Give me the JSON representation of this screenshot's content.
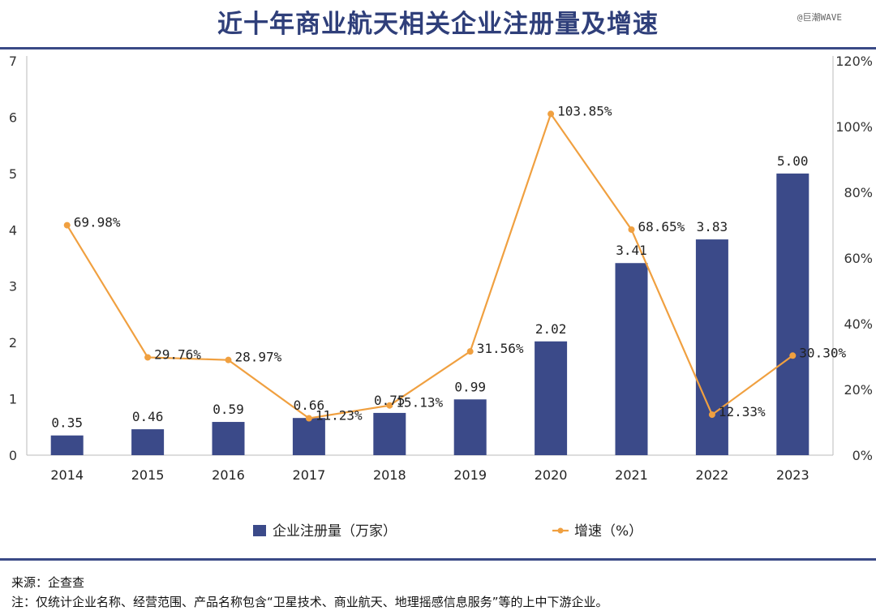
{
  "title": "近十年商业航天相关企业注册量及增速",
  "watermark": "@巨潮WAVE",
  "source": "来源：企查查",
  "note": "注：仅统计企业名称、经营范围、产品名称包含“卫星技术、商业航天、地理摇感信息服务”等的上中下游企业。",
  "colors": {
    "bar": "#3b4a89",
    "line": "#f0a040",
    "title": "#2f3f7a"
  },
  "chart_data": {
    "type": "bar+line",
    "categories": [
      "2014",
      "2015",
      "2016",
      "2017",
      "2018",
      "2019",
      "2020",
      "2021",
      "2022",
      "2023"
    ],
    "series": [
      {
        "name": "企业注册量（万家）",
        "type": "bar",
        "axis": "left",
        "values": [
          0.35,
          0.46,
          0.59,
          0.66,
          0.75,
          0.99,
          2.02,
          3.41,
          3.83,
          5.0
        ],
        "labels": [
          "0.35",
          "0.46",
          "0.59",
          "0.66",
          "0.75",
          "0.99",
          "2.02",
          "3.41",
          "3.83",
          "5.00"
        ]
      },
      {
        "name": "增速（%）",
        "type": "line",
        "axis": "right",
        "values": [
          69.98,
          29.76,
          28.97,
          11.23,
          15.13,
          31.56,
          103.85,
          68.65,
          12.33,
          30.3
        ],
        "labels": [
          "69.98%",
          "29.76%",
          "28.97%",
          "11.23%",
          "15.13%",
          "31.56%",
          "103.85%",
          "68.65%",
          "12.33%",
          "30.30%"
        ]
      }
    ],
    "yleft": {
      "range": [
        0,
        7
      ],
      "ticks": [
        "0",
        "1",
        "2",
        "3",
        "4",
        "5",
        "6",
        "7"
      ]
    },
    "yright": {
      "range": [
        0,
        120
      ],
      "ticks": [
        "0%",
        "20%",
        "40%",
        "60%",
        "80%",
        "100%",
        "120%"
      ]
    },
    "grid": false,
    "legend": "bottom"
  }
}
